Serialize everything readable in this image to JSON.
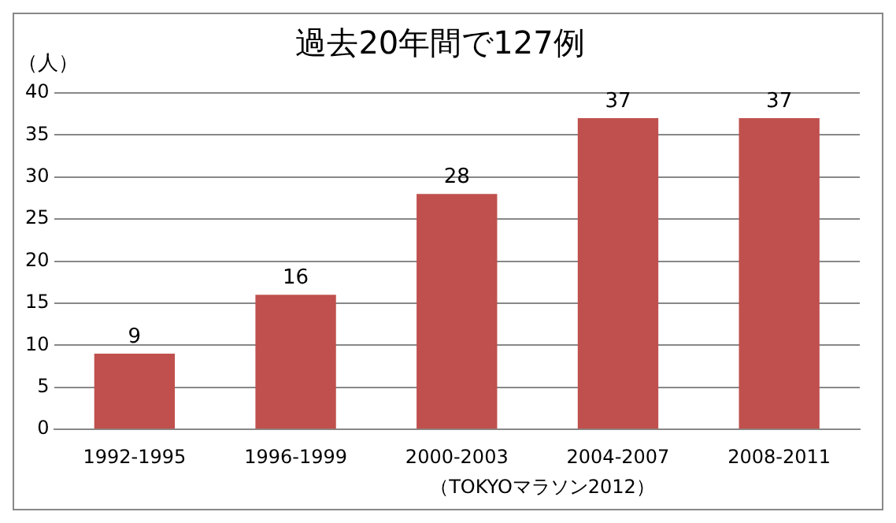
{
  "chart_data": {
    "type": "bar",
    "title": "過去20年間で127例",
    "ylabel": "（人）",
    "categories": [
      "1992-1995",
      "1996-1999",
      "2000-2003",
      "2004-2007",
      "2008-2011"
    ],
    "values": [
      9,
      16,
      28,
      37,
      37
    ],
    "color": "#c0504d",
    "ylim": [
      0,
      40
    ],
    "yticks": [
      0,
      5,
      10,
      15,
      20,
      25,
      30,
      35,
      40
    ],
    "grid": "y",
    "data_labels": true,
    "annotations": [
      "（TOKYOマラソン2012）"
    ]
  }
}
